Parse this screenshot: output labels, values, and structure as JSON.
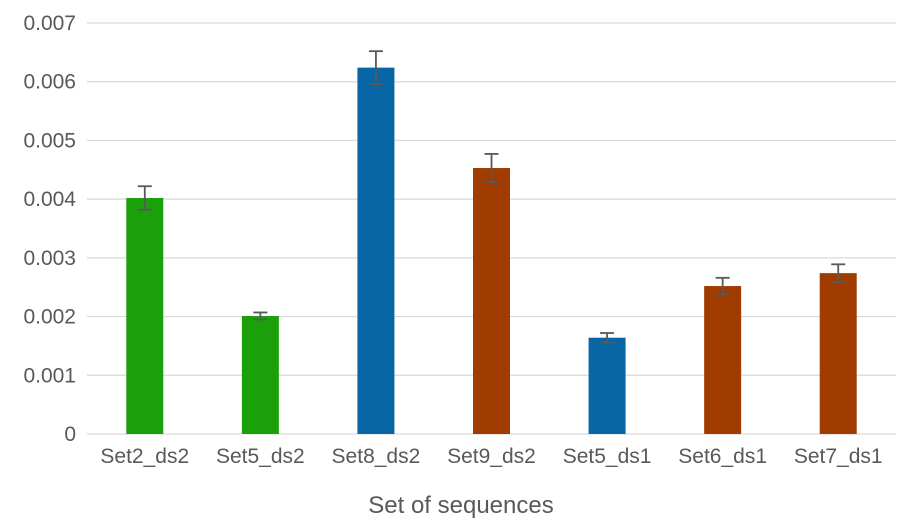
{
  "chart_data": {
    "type": "bar",
    "title": "",
    "xlabel": "Set of sequences",
    "ylabel": "",
    "categories": [
      "Set2_ds2",
      "Set5_ds2",
      "Set8_ds2",
      "Set9_ds2",
      "Set5_ds1",
      "Set6_ds1",
      "Set7_ds1"
    ],
    "values": [
      0.00402,
      0.00201,
      0.00624,
      0.00453,
      0.00164,
      0.00252,
      0.00274
    ],
    "errors": [
      0.0002,
      6e-05,
      0.00028,
      0.00024,
      8e-05,
      0.00014,
      0.00015
    ],
    "bar_colors": [
      "#1aa10a",
      "#1aa10a",
      "#0766a3",
      "#a03c00",
      "#0766a3",
      "#a03c00",
      "#a03c00"
    ],
    "ylim": [
      0,
      0.007
    ],
    "yticks": [
      "0",
      "0.001",
      "0.002",
      "0.003",
      "0.004",
      "0.005",
      "0.006",
      "0.007"
    ],
    "grid": true,
    "legend": "none"
  },
  "colors": {
    "grid": "#d9d9d9",
    "text": "#595959",
    "error_bar": "#595959"
  }
}
